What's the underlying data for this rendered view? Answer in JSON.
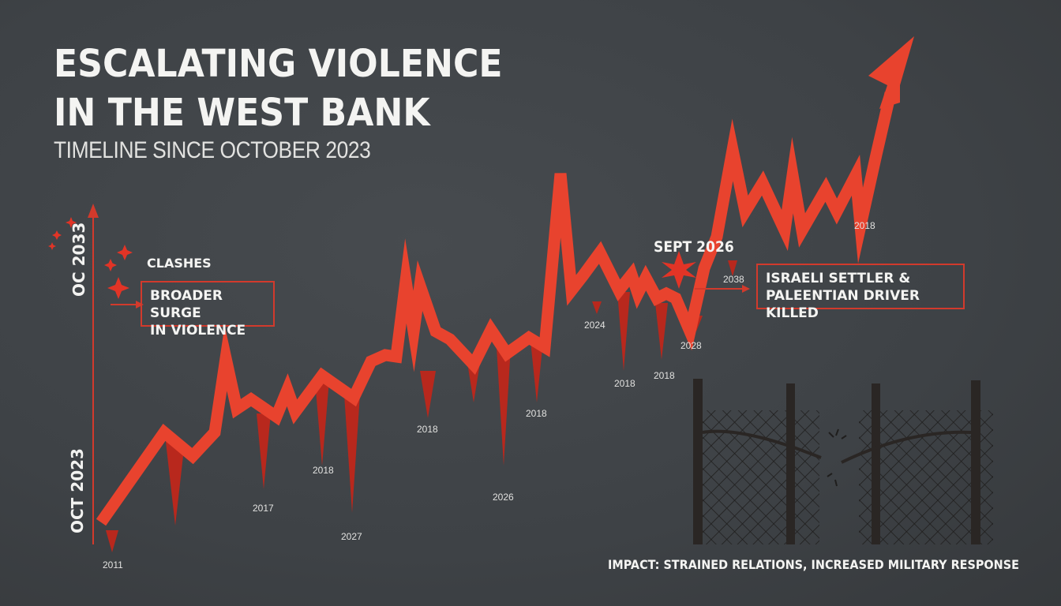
{
  "header": {
    "title_line1": "ESCALATING VIOLENCE",
    "title_line2": "IN THE WEST BANK",
    "subtitle": "TIMELINE SINCE OCTOBER 2023"
  },
  "axis": {
    "top_label": "OC 2033",
    "bottom_label": "OCT 2023"
  },
  "annotations": {
    "clashes": "CLASHES",
    "surge_line1": "BROADER SURGE",
    "surge_line2": "IN VIOLENCE",
    "sept": "SEPT 2026",
    "settler_line1": "ISRAELI SETTLER &",
    "settler_line2": "PALEENTIAN DRIVER KILLED",
    "impact": "IMPACT: STRAINED RELATIONS, INCREASED MILITARY RESPONSE"
  },
  "colors": {
    "accent": "#e8432e",
    "accent_dark": "#b8281d",
    "background": "#3f4347",
    "text": "#f4f4f2"
  },
  "icons": [
    "burst-icon",
    "broken-fence-icon",
    "trend-arrow-icon"
  ],
  "chart_data": {
    "type": "line",
    "title": "ESCALATING VIOLENCE IN THE WEST BANK",
    "subtitle": "TIMELINE SINCE OCTOBER 2023",
    "ylabel_top": "OC 2033",
    "ylabel_bottom": "OCT 2023",
    "grid": false,
    "legend": "none",
    "trend": "upward, ending in arrow",
    "tick_labels": [
      "2011",
      "2017",
      "2018",
      "2027",
      "2018",
      "2026",
      "2018",
      "2024",
      "2018",
      "2018",
      "2028",
      "2038",
      "2018"
    ]
  }
}
